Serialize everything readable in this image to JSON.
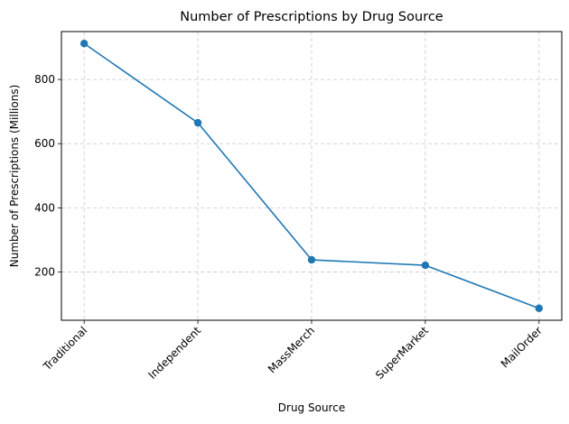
{
  "chart_data": {
    "type": "line",
    "title": "Number of Prescriptions by Drug Source",
    "xlabel": "Drug Source",
    "ylabel": "Number of Prescriptions (Millions)",
    "categories": [
      "Traditional",
      "Independent",
      "MassMerch",
      "SuperMarket",
      "MailOrder"
    ],
    "values": [
      912,
      665,
      238,
      221,
      87
    ],
    "ylim": [
      49.75,
      949.25
    ],
    "yticks": [
      200,
      400,
      600,
      800
    ],
    "ytick_labels": [
      "200",
      "400",
      "600",
      "800"
    ],
    "grid": true,
    "marker": "circle",
    "colors": {
      "line": "#1f77b4",
      "grid": "#c8c8c8",
      "axis": "#000000"
    }
  }
}
